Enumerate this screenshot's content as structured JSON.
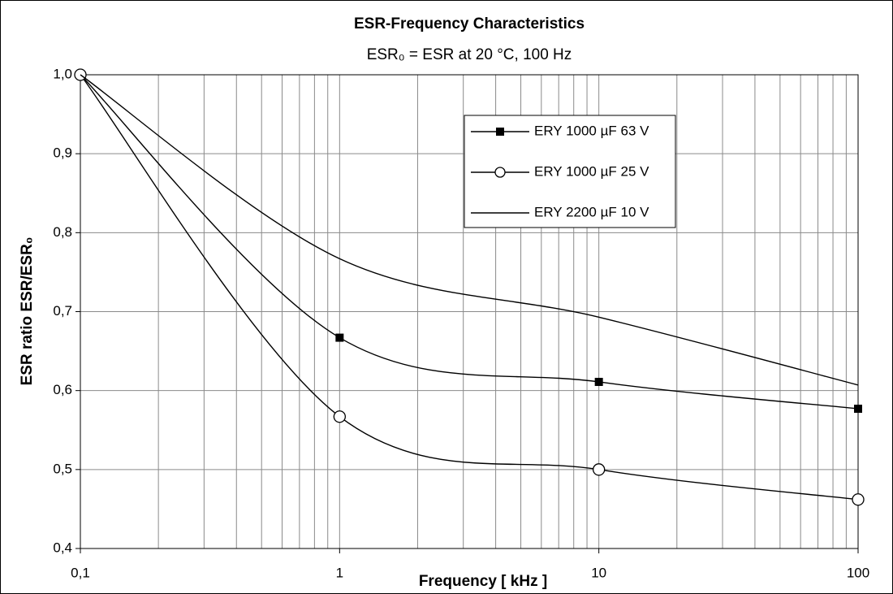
{
  "chart_data": {
    "type": "line",
    "title": "ESR-Frequency Characteristics",
    "subtitle": "ESR₀ = ESR at 20 °C, 100 Hz",
    "xlabel": "Frequency [ kHz ]",
    "ylabel": "ESR ratio ESR/ESR₀",
    "xlog": true,
    "grid": true,
    "x": [
      0.1,
      1,
      10,
      100
    ],
    "series": [
      {
        "name": "ERY 1000 µF 63 V",
        "color": "#000000",
        "marker": "square",
        "values": [
          1.0,
          0.667,
          0.611,
          0.577
        ]
      },
      {
        "name": "ERY 1000 µF 25 V",
        "color": "#000000",
        "marker": "circle",
        "values": [
          1.0,
          0.567,
          0.5,
          0.462
        ]
      },
      {
        "name": "ERY 2200 µF 10 V",
        "color": "#000000",
        "marker": "none",
        "values": [
          1.0,
          0.767,
          0.693,
          0.607
        ]
      }
    ],
    "xlim": [
      0.1,
      100
    ],
    "xticks": [
      {
        "value": 0.1,
        "label": "0,1"
      },
      1,
      10,
      100
    ],
    "xminorticks": [
      0.2,
      0.3,
      0.4,
      0.5,
      0.6,
      0.7,
      0.8,
      0.9,
      2,
      3,
      4,
      5,
      6,
      7,
      8,
      9,
      20,
      30,
      40,
      50,
      60,
      70,
      80,
      90
    ],
    "ylim": [
      0.4,
      1.0
    ],
    "yticks": [
      {
        "value": 0.4,
        "label": "0,4"
      },
      {
        "value": 0.5,
        "label": "0,5"
      },
      {
        "value": 0.6,
        "label": "0,6"
      },
      {
        "value": 0.7,
        "label": "0,7"
      },
      {
        "value": 0.8,
        "label": "0,8"
      },
      {
        "value": 0.9,
        "label": "0,9"
      },
      {
        "value": 1.0,
        "label": "1,0"
      }
    ]
  }
}
